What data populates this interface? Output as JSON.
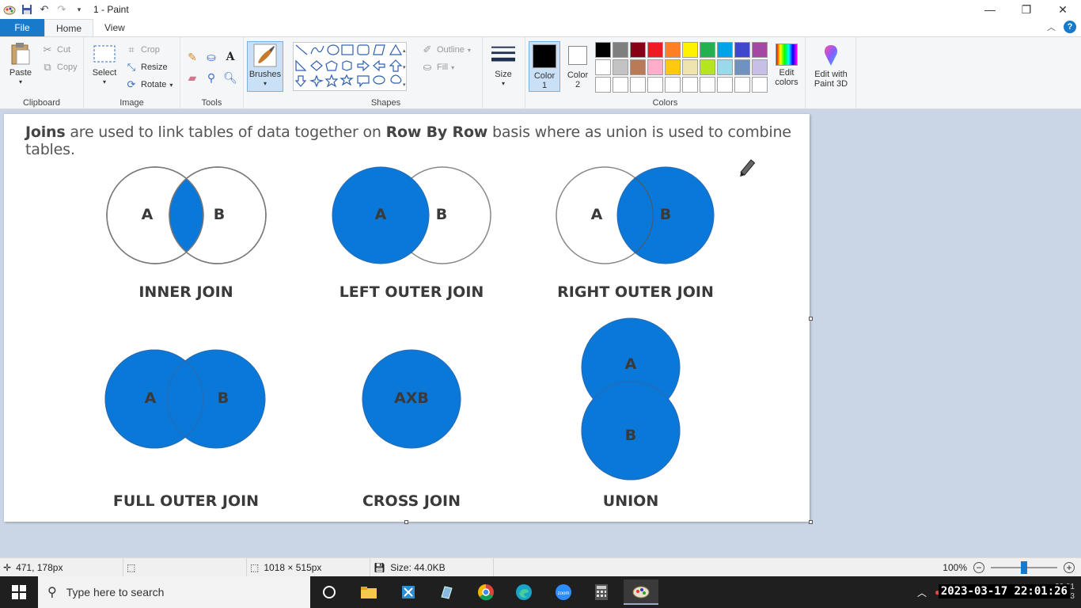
{
  "window": {
    "title": "1 - Paint",
    "controls": {
      "minimize": "—",
      "maximize": "❐",
      "close": "✕"
    }
  },
  "quick_access": {
    "icons": [
      "paint-app-icon",
      "save-icon",
      "undo-icon",
      "redo-icon",
      "customize-dropdown-icon"
    ]
  },
  "tabs": [
    {
      "label": "File",
      "active": false
    },
    {
      "label": "Home",
      "active": true
    },
    {
      "label": "View",
      "active": false
    }
  ],
  "ribbon": {
    "clipboard": {
      "label": "Clipboard",
      "paste": "Paste",
      "cut": "Cut",
      "copy": "Copy"
    },
    "image": {
      "label": "Image",
      "select": "Select",
      "crop": "Crop",
      "resize": "Resize",
      "rotate": "Rotate"
    },
    "tools": {
      "label": "Tools"
    },
    "brushes": {
      "label": "Brushes"
    },
    "shapes": {
      "label": "Shapes",
      "outline": "Outline",
      "fill": "Fill"
    },
    "size": {
      "label": "Size"
    },
    "colors": {
      "label": "Colors",
      "color1": "Color",
      "color1_num": "1",
      "color2": "Color",
      "color2_num": "2",
      "edit_colors_1": "Edit",
      "edit_colors_2": "colors",
      "color1_value": "#000000",
      "color2_value": "#ffffff",
      "palette_row1": [
        "#000000",
        "#7f7f7f",
        "#880015",
        "#ed1c24",
        "#ff7f27",
        "#fff200",
        "#22b14c",
        "#00a2e8",
        "#3f48cc",
        "#a349a4"
      ],
      "palette_row2": [
        "#ffffff",
        "#c3c3c3",
        "#b97a57",
        "#ffaec9",
        "#ffc90e",
        "#efe4b0",
        "#b5e61d",
        "#99d9ea",
        "#7092be",
        "#c8bfe7"
      ],
      "palette_row3": [
        "#ffffff",
        "#ffffff",
        "#ffffff",
        "#ffffff",
        "#ffffff",
        "#ffffff",
        "#ffffff",
        "#ffffff",
        "#ffffff",
        "#ffffff"
      ]
    },
    "paint3d": {
      "line1": "Edit with",
      "line2": "Paint 3D"
    }
  },
  "canvas": {
    "heading_joins": "Joins",
    "heading_mid": " are used to link tables of data together on ",
    "heading_rowbyrow": "Row By Row",
    "heading_end": " basis where as union is used to combine tables.",
    "fill_color": "#0a78d8",
    "diagrams": {
      "inner": {
        "label": "INNER JOIN",
        "a": "A",
        "b": "B"
      },
      "left": {
        "label": "LEFT OUTER JOIN",
        "a": "A",
        "b": "B"
      },
      "right": {
        "label": "RIGHT OUTER JOIN",
        "a": "A",
        "b": "B"
      },
      "full": {
        "label": "FULL OUTER JOIN",
        "a": "A",
        "b": "B"
      },
      "cross": {
        "label": "CROSS JOIN",
        "ab": "AXB"
      },
      "union": {
        "label": "UNION",
        "a": "A",
        "b": "B"
      }
    }
  },
  "status": {
    "cursor_pos": "471, 178px",
    "canvas_size": "1018 × 515px",
    "file_size": "Size: 44.0KB",
    "zoom": "100%"
  },
  "taskbar": {
    "search_placeholder": "Type here to search",
    "clock_time": "22:01",
    "clock_date": "17-03-2023",
    "overlay_timestamp": "2023-03-17  22:01:26"
  }
}
